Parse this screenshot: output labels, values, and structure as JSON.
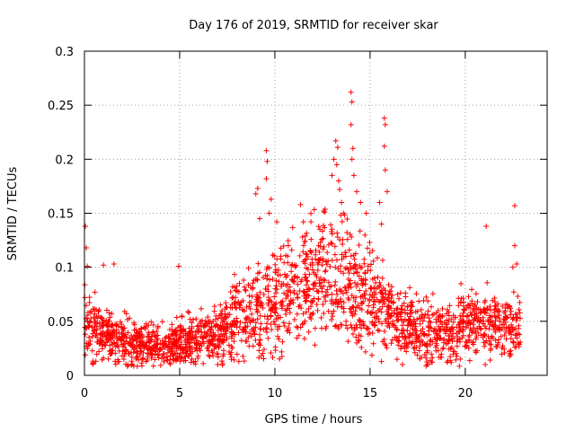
{
  "chart_data": {
    "type": "scatter",
    "title": "Day 176 of 2019, SRMTID for receiver skar",
    "xlabel": "GPS time / hours",
    "ylabel": "SRMTID / TECUs",
    "xlim": [
      0,
      24.3
    ],
    "ylim": [
      0,
      0.3
    ],
    "x_ticks": [
      0,
      5,
      10,
      15,
      20
    ],
    "x_tick_labels": [
      "0",
      "5",
      "10",
      "15",
      "20"
    ],
    "y_ticks": [
      0,
      0.05,
      0.1,
      0.15,
      0.2,
      0.25,
      0.3
    ],
    "y_tick_labels": [
      "0",
      "0.05",
      "0.1",
      "0.15",
      "0.2",
      "0.25",
      "0.3"
    ],
    "grid": true,
    "marker": "+",
    "color": "#ff0000",
    "x_range": [
      0,
      22.9
    ],
    "hourly_median": [
      0.05,
      0.035,
      0.033,
      0.028,
      0.027,
      0.03,
      0.035,
      0.036,
      0.05,
      0.055,
      0.068,
      0.08,
      0.09,
      0.095,
      0.083,
      0.07,
      0.055,
      0.045,
      0.04,
      0.04,
      0.045,
      0.048,
      0.045,
      0.042,
      0.042
    ],
    "hourly_spread": [
      0.03,
      0.02,
      0.02,
      0.015,
      0.015,
      0.018,
      0.02,
      0.02,
      0.03,
      0.035,
      0.04,
      0.04,
      0.04,
      0.045,
      0.045,
      0.04,
      0.03,
      0.025,
      0.025,
      0.025,
      0.025,
      0.025,
      0.025,
      0.022,
      0.022
    ],
    "points_per_hour": 95,
    "notable_points": [
      {
        "x": 0.05,
        "y": 0.138
      },
      {
        "x": 0.1,
        "y": 0.118
      },
      {
        "x": 0.15,
        "y": 0.101
      },
      {
        "x": 1.0,
        "y": 0.102
      },
      {
        "x": 1.55,
        "y": 0.103
      },
      {
        "x": 4.95,
        "y": 0.101
      },
      {
        "x": 9.0,
        "y": 0.168
      },
      {
        "x": 9.1,
        "y": 0.173
      },
      {
        "x": 9.2,
        "y": 0.145
      },
      {
        "x": 9.55,
        "y": 0.208
      },
      {
        "x": 9.6,
        "y": 0.198
      },
      {
        "x": 9.55,
        "y": 0.182
      },
      {
        "x": 9.7,
        "y": 0.15
      },
      {
        "x": 9.8,
        "y": 0.163
      },
      {
        "x": 10.1,
        "y": 0.142
      },
      {
        "x": 11.35,
        "y": 0.158
      },
      {
        "x": 11.5,
        "y": 0.142
      },
      {
        "x": 11.45,
        "y": 0.128
      },
      {
        "x": 12.4,
        "y": 0.123
      },
      {
        "x": 13.0,
        "y": 0.185
      },
      {
        "x": 13.1,
        "y": 0.2
      },
      {
        "x": 13.2,
        "y": 0.217
      },
      {
        "x": 13.3,
        "y": 0.211
      },
      {
        "x": 13.25,
        "y": 0.195
      },
      {
        "x": 13.35,
        "y": 0.18
      },
      {
        "x": 13.4,
        "y": 0.172
      },
      {
        "x": 13.5,
        "y": 0.16
      },
      {
        "x": 13.6,
        "y": 0.15
      },
      {
        "x": 14.0,
        "y": 0.262
      },
      {
        "x": 14.05,
        "y": 0.253
      },
      {
        "x": 14.0,
        "y": 0.232
      },
      {
        "x": 14.1,
        "y": 0.21
      },
      {
        "x": 14.05,
        "y": 0.2
      },
      {
        "x": 14.15,
        "y": 0.185
      },
      {
        "x": 14.3,
        "y": 0.17
      },
      {
        "x": 14.5,
        "y": 0.16
      },
      {
        "x": 14.8,
        "y": 0.15
      },
      {
        "x": 15.5,
        "y": 0.16
      },
      {
        "x": 15.6,
        "y": 0.14
      },
      {
        "x": 15.75,
        "y": 0.238
      },
      {
        "x": 15.8,
        "y": 0.232
      },
      {
        "x": 15.75,
        "y": 0.212
      },
      {
        "x": 15.8,
        "y": 0.19
      },
      {
        "x": 15.9,
        "y": 0.17
      },
      {
        "x": 14.3,
        "y": 0.03
      },
      {
        "x": 12.1,
        "y": 0.028
      },
      {
        "x": 16.7,
        "y": 0.01
      },
      {
        "x": 16.9,
        "y": 0.022
      },
      {
        "x": 18.0,
        "y": 0.01
      },
      {
        "x": 21.1,
        "y": 0.138
      },
      {
        "x": 22.6,
        "y": 0.157
      },
      {
        "x": 22.6,
        "y": 0.12
      },
      {
        "x": 22.7,
        "y": 0.103
      },
      {
        "x": 22.5,
        "y": 0.1
      },
      {
        "x": 7.0,
        "y": 0.01
      },
      {
        "x": 5.6,
        "y": 0.012
      }
    ]
  }
}
